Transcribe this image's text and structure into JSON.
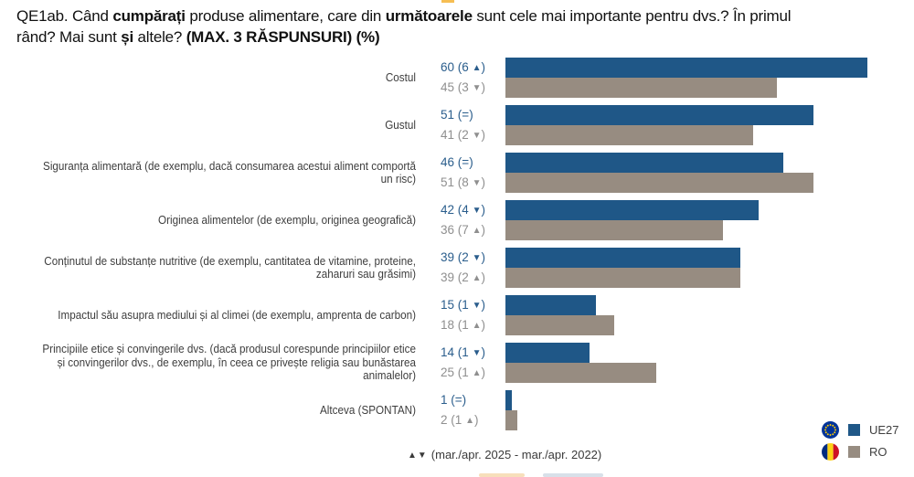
{
  "title": {
    "segments": [
      {
        "text": "QE1ab. Când ",
        "bold": false
      },
      {
        "text": "cumpărați",
        "bold": true
      },
      {
        "text": " produse alimentare, care din ",
        "bold": false
      },
      {
        "text": "următoarele",
        "bold": true
      },
      {
        "text": " sunt cele mai importante pentru dvs.? În primul",
        "bold": false
      },
      {
        "br": true
      },
      {
        "text": "rând? Mai sunt ",
        "bold": false
      },
      {
        "text": "și",
        "bold": true
      },
      {
        "text": " altele? ",
        "bold": false
      },
      {
        "text": "(MAX. 3 RĂSPUNSURI) (%)",
        "bold": true
      }
    ]
  },
  "chart_data": {
    "type": "bar",
    "orientation": "horizontal",
    "unit": "%",
    "xlim": [
      0,
      66
    ],
    "series": [
      {
        "name": "UE27",
        "color": "#1f5787",
        "text_color": "#2a5d8c"
      },
      {
        "name": "RO",
        "color": "#978c81",
        "text_color": "#8f8f8f"
      }
    ],
    "rows": [
      {
        "label": "Costul",
        "eu": 60,
        "eu_label": "60 (6 ▲)",
        "ro": 45,
        "ro_label": "45 (3 ▼)"
      },
      {
        "label": "Gustul",
        "eu": 51,
        "eu_label": "51 (=)",
        "ro": 41,
        "ro_label": "41 (2 ▼)"
      },
      {
        "label": "Siguranța alimentară (de exemplu, dacă consumarea acestui aliment comportă un risc)",
        "eu": 46,
        "eu_label": "46 (=)",
        "ro": 51,
        "ro_label": "51 (8 ▼)"
      },
      {
        "label": "Originea alimentelor (de exemplu, originea geografică)",
        "eu": 42,
        "eu_label": "42 (4 ▼)",
        "ro": 36,
        "ro_label": "36 (7 ▲)"
      },
      {
        "label": "Conținutul de substanțe nutritive (de exemplu, cantitatea de vitamine, proteine, zaharuri sau grăsimi)",
        "eu": 39,
        "eu_label": "39 (2 ▼)",
        "ro": 39,
        "ro_label": "39 (2 ▲)"
      },
      {
        "label": "Impactul său asupra mediului și al climei (de exemplu, amprenta de carbon)",
        "eu": 15,
        "eu_label": "15 (1 ▼)",
        "ro": 18,
        "ro_label": "18 (1 ▲)"
      },
      {
        "label": "Principiile etice și convingerile dvs. (dacă produsul corespunde principiilor etice și convingerilor dvs., de exemplu, în ceea ce privește religia sau bunăstarea animalelor)",
        "eu": 14,
        "eu_label": "14 (1 ▼)",
        "ro": 25,
        "ro_label": "25 (1 ▲)"
      },
      {
        "label": "Altceva (SPONTAN)",
        "eu": 1,
        "eu_label": "1 (=)",
        "ro": 2,
        "ro_label": "2 (1 ▲)"
      }
    ]
  },
  "legend": {
    "items": [
      {
        "flag": "eu-flag",
        "label": "UE27"
      },
      {
        "flag": "ro-flag",
        "label": "RO"
      }
    ]
  },
  "footnote": {
    "arrows": "▲▼",
    "text": "(mar./apr. 2025 - mar./apr. 2022)"
  }
}
